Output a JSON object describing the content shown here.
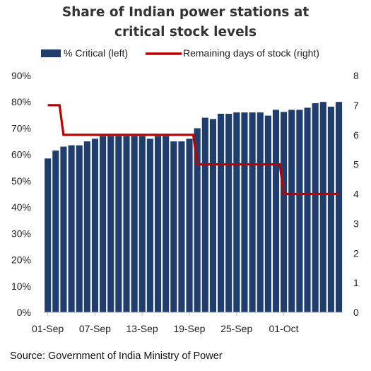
{
  "chart_data": {
    "type": "bar",
    "title_line1": "Share of Indian power stations at",
    "title_line2": "critical stock levels",
    "legend": {
      "bar_label": "% Critical (left)",
      "line_label": "Remaining days of stock (right)"
    },
    "colors": {
      "bar": "#1f3e6e",
      "line": "#c00000",
      "axis": "#bfbfbf"
    },
    "x_tick_labels": [
      "01-Sep",
      "07-Sep",
      "13-Sep",
      "19-Sep",
      "25-Sep",
      "01-Oct"
    ],
    "y_left_ticks": [
      "0%",
      "10%",
      "20%",
      "30%",
      "40%",
      "50%",
      "60%",
      "70%",
      "80%",
      "90%"
    ],
    "y_right_ticks": [
      "0",
      "1",
      "2",
      "3",
      "4",
      "5",
      "6",
      "7",
      "8"
    ],
    "ylim_left": [
      0,
      90
    ],
    "ylim_right": [
      0,
      8
    ],
    "start_date": "2021-09-01",
    "series": [
      {
        "name": "% Critical (left)",
        "axis": "left",
        "values": [
          58.5,
          61.5,
          63,
          63.5,
          63.5,
          65,
          66,
          67,
          67,
          67,
          67,
          67,
          67,
          66,
          67,
          67,
          65,
          65,
          66,
          70,
          74,
          73.5,
          75.5,
          75.5,
          76,
          76,
          76,
          76,
          74.8,
          77,
          76.2,
          77,
          77,
          77.8,
          79.5,
          80,
          78.2,
          80
        ]
      },
      {
        "name": "Remaining days of stock (right)",
        "axis": "right",
        "values": [
          7,
          7,
          6,
          6,
          6,
          6,
          6,
          6,
          6,
          6,
          6,
          6,
          6,
          6,
          6,
          6,
          6,
          6,
          6,
          5,
          5,
          5,
          5,
          5,
          5,
          5,
          5,
          5,
          5,
          5,
          4,
          4,
          4,
          4,
          4,
          4,
          4,
          4
        ]
      }
    ]
  },
  "source": "Source: Government of India Ministry of Power"
}
